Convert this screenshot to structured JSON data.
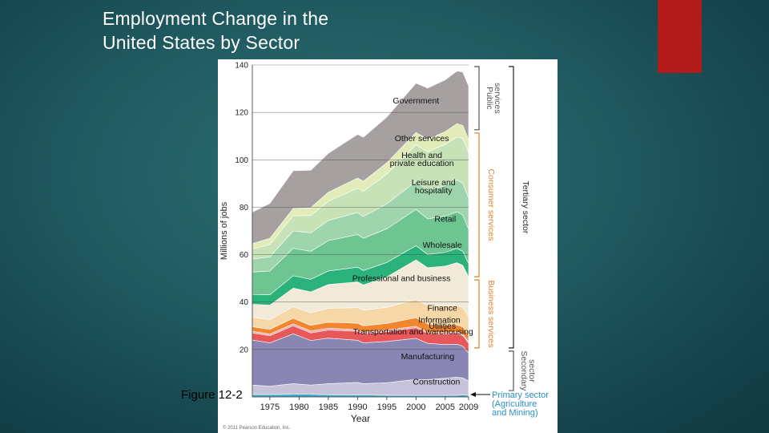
{
  "slide": {
    "title_line1": "Employment Change in the",
    "title_line2": "United States by Sector",
    "caption": "Figure 12-2",
    "accent_color": "#b31b1b"
  },
  "chart_data": {
    "type": "area",
    "stacked": true,
    "title": "",
    "xlabel": "Year",
    "ylabel": "Millions of jobs",
    "xlim": [
      1972,
      2009
    ],
    "ylim": [
      0,
      140
    ],
    "yticks": [
      20,
      40,
      60,
      80,
      100,
      120,
      140
    ],
    "xticks": [
      1975,
      1980,
      1985,
      1990,
      1995,
      2000,
      2005,
      2009
    ],
    "gridlines_y": true,
    "x": [
      1972,
      1975,
      1979,
      1982,
      1985,
      1990,
      1991,
      1995,
      2000,
      2002,
      2005,
      2007,
      2008,
      2009
    ],
    "series": [
      {
        "name": "Agriculture and Mining",
        "color": "#3aa6c8",
        "values": [
          1.0,
          1.0,
          1.1,
          1.1,
          0.9,
          0.8,
          0.8,
          0.7,
          0.6,
          0.6,
          0.6,
          0.7,
          0.8,
          0.7
        ]
      },
      {
        "name": "Construction",
        "color": "#c7c3db",
        "values": [
          4.0,
          3.5,
          4.5,
          3.9,
          4.7,
          5.3,
          4.8,
          5.3,
          6.8,
          6.7,
          7.3,
          7.6,
          7.2,
          6.0
        ]
      },
      {
        "name": "Manufacturing",
        "color": "#8a86b4",
        "values": [
          19.0,
          18.3,
          21.0,
          18.8,
          19.2,
          17.8,
          17.2,
          17.4,
          17.3,
          15.3,
          14.2,
          13.9,
          13.4,
          11.8
        ]
      },
      {
        "name": "Transportation and warehousing",
        "color": "#e8575a",
        "values": [
          3.0,
          3.0,
          3.4,
          3.2,
          3.4,
          3.8,
          3.8,
          4.1,
          4.5,
          4.2,
          4.4,
          4.6,
          4.5,
          4.2
        ]
      },
      {
        "name": "Utilities",
        "color": "#f3a1a1",
        "values": [
          0.7,
          0.7,
          0.8,
          0.8,
          0.8,
          0.7,
          0.7,
          0.7,
          0.6,
          0.6,
          0.6,
          0.6,
          0.6,
          0.6
        ]
      },
      {
        "name": "Information",
        "color": "#f2862f",
        "values": [
          1.9,
          2.0,
          2.4,
          2.4,
          2.5,
          2.7,
          2.7,
          2.8,
          3.6,
          3.4,
          3.1,
          3.0,
          3.0,
          2.8
        ]
      },
      {
        "name": "Finance",
        "color": "#f6d7a8",
        "values": [
          4.0,
          4.1,
          4.9,
          5.3,
          5.9,
          6.6,
          6.6,
          6.8,
          7.7,
          7.8,
          8.1,
          8.3,
          8.2,
          7.9
        ]
      },
      {
        "name": "Professional and business",
        "color": "#f2ead8",
        "values": [
          5.5,
          6.1,
          7.8,
          8.8,
          10.0,
          10.8,
          10.6,
          12.8,
          16.7,
          15.9,
          16.9,
          17.9,
          17.8,
          16.6
        ]
      },
      {
        "name": "Wholesale",
        "color": "#2bb27a",
        "values": [
          4.1,
          4.4,
          5.2,
          5.3,
          5.7,
          6.2,
          6.1,
          6.1,
          6.0,
          5.6,
          5.8,
          6.0,
          5.9,
          5.6
        ]
      },
      {
        "name": "Retail",
        "color": "#6fc592",
        "values": [
          9.5,
          10.0,
          11.6,
          11.8,
          12.8,
          13.8,
          13.6,
          14.2,
          15.3,
          15.0,
          15.3,
          15.5,
          15.3,
          14.5
        ]
      },
      {
        "name": "Leisure and hospitality",
        "color": "#9fd5ad",
        "values": [
          5.4,
          6.0,
          7.3,
          7.8,
          8.5,
          9.3,
          9.2,
          10.5,
          11.9,
          12.0,
          12.8,
          13.4,
          13.4,
          13.1
        ]
      },
      {
        "name": "Health and private education",
        "color": "#c7e2b7",
        "values": [
          4.2,
          5.2,
          6.4,
          7.3,
          8.1,
          10.2,
          10.6,
          12.6,
          15.3,
          16.2,
          17.4,
          18.2,
          18.9,
          19.3
        ]
      },
      {
        "name": "Other services",
        "color": "#e2ecb8",
        "values": [
          2.3,
          2.6,
          3.1,
          3.3,
          3.8,
          4.3,
          4.3,
          4.7,
          5.2,
          5.4,
          5.4,
          5.5,
          5.5,
          5.4
        ]
      },
      {
        "name": "Government",
        "color": "#a7a0a0",
        "values": [
          13.3,
          14.7,
          15.9,
          15.8,
          16.4,
          18.4,
          18.5,
          19.3,
          20.8,
          21.5,
          21.8,
          22.2,
          22.5,
          22.6
        ]
      }
    ],
    "area_labels": [
      {
        "text": "Government",
        "x": 2000,
        "y": 125
      },
      {
        "text": "Other services",
        "x": 2001,
        "y": 109
      },
      {
        "text": "Health and",
        "x": 2001,
        "y": 102
      },
      {
        "text": "private education",
        "x": 2001,
        "y": 98.5
      },
      {
        "text": "Leisure and",
        "x": 2003,
        "y": 90.5
      },
      {
        "text": "hospitality",
        "x": 2003,
        "y": 87
      },
      {
        "text": "Retail",
        "x": 2005,
        "y": 75
      },
      {
        "text": "Wholesale",
        "x": 2004.5,
        "y": 64
      },
      {
        "text": "Professional and business",
        "x": 1997.5,
        "y": 50
      },
      {
        "text": "Finance",
        "x": 2004.5,
        "y": 37.5
      },
      {
        "text": "Information",
        "x": 2004,
        "y": 32.5
      },
      {
        "text": "Utilities",
        "x": 2004.5,
        "y": 30
      },
      {
        "text": "Transportation and warehousing",
        "x": 1999.5,
        "y": 27.5
      },
      {
        "text": "Manufacturing",
        "x": 2002,
        "y": 17
      },
      {
        "text": "Construction",
        "x": 2003.5,
        "y": 6.5
      }
    ],
    "brackets": [
      {
        "label_lines": [
          "Public",
          "services"
        ],
        "y_from": 140,
        "y_to": 112,
        "side": "inner",
        "color": "#555555"
      },
      {
        "label_lines": [
          "Consumer services"
        ],
        "y_from": 112,
        "y_to": 50,
        "side": "inner",
        "color": "#e1822a"
      },
      {
        "label_lines": [
          "Business services"
        ],
        "y_from": 50,
        "y_to": 20,
        "side": "inner",
        "color": "#e1822a"
      },
      {
        "label_lines": [
          "Tertiary sector"
        ],
        "y_from": 140,
        "y_to": 20,
        "side": "outer",
        "color": "#222222"
      },
      {
        "label_lines": [
          "Secondary",
          "sector"
        ],
        "y_from": 20,
        "y_to": 2,
        "side": "outer",
        "color": "#555555"
      }
    ],
    "primary_sector_note": [
      "Primary sector",
      "(Agriculture",
      "and Mining)"
    ],
    "primary_sector_color": "#2a8fc2",
    "copyright": "© 2011 Pearson Education, Inc."
  }
}
